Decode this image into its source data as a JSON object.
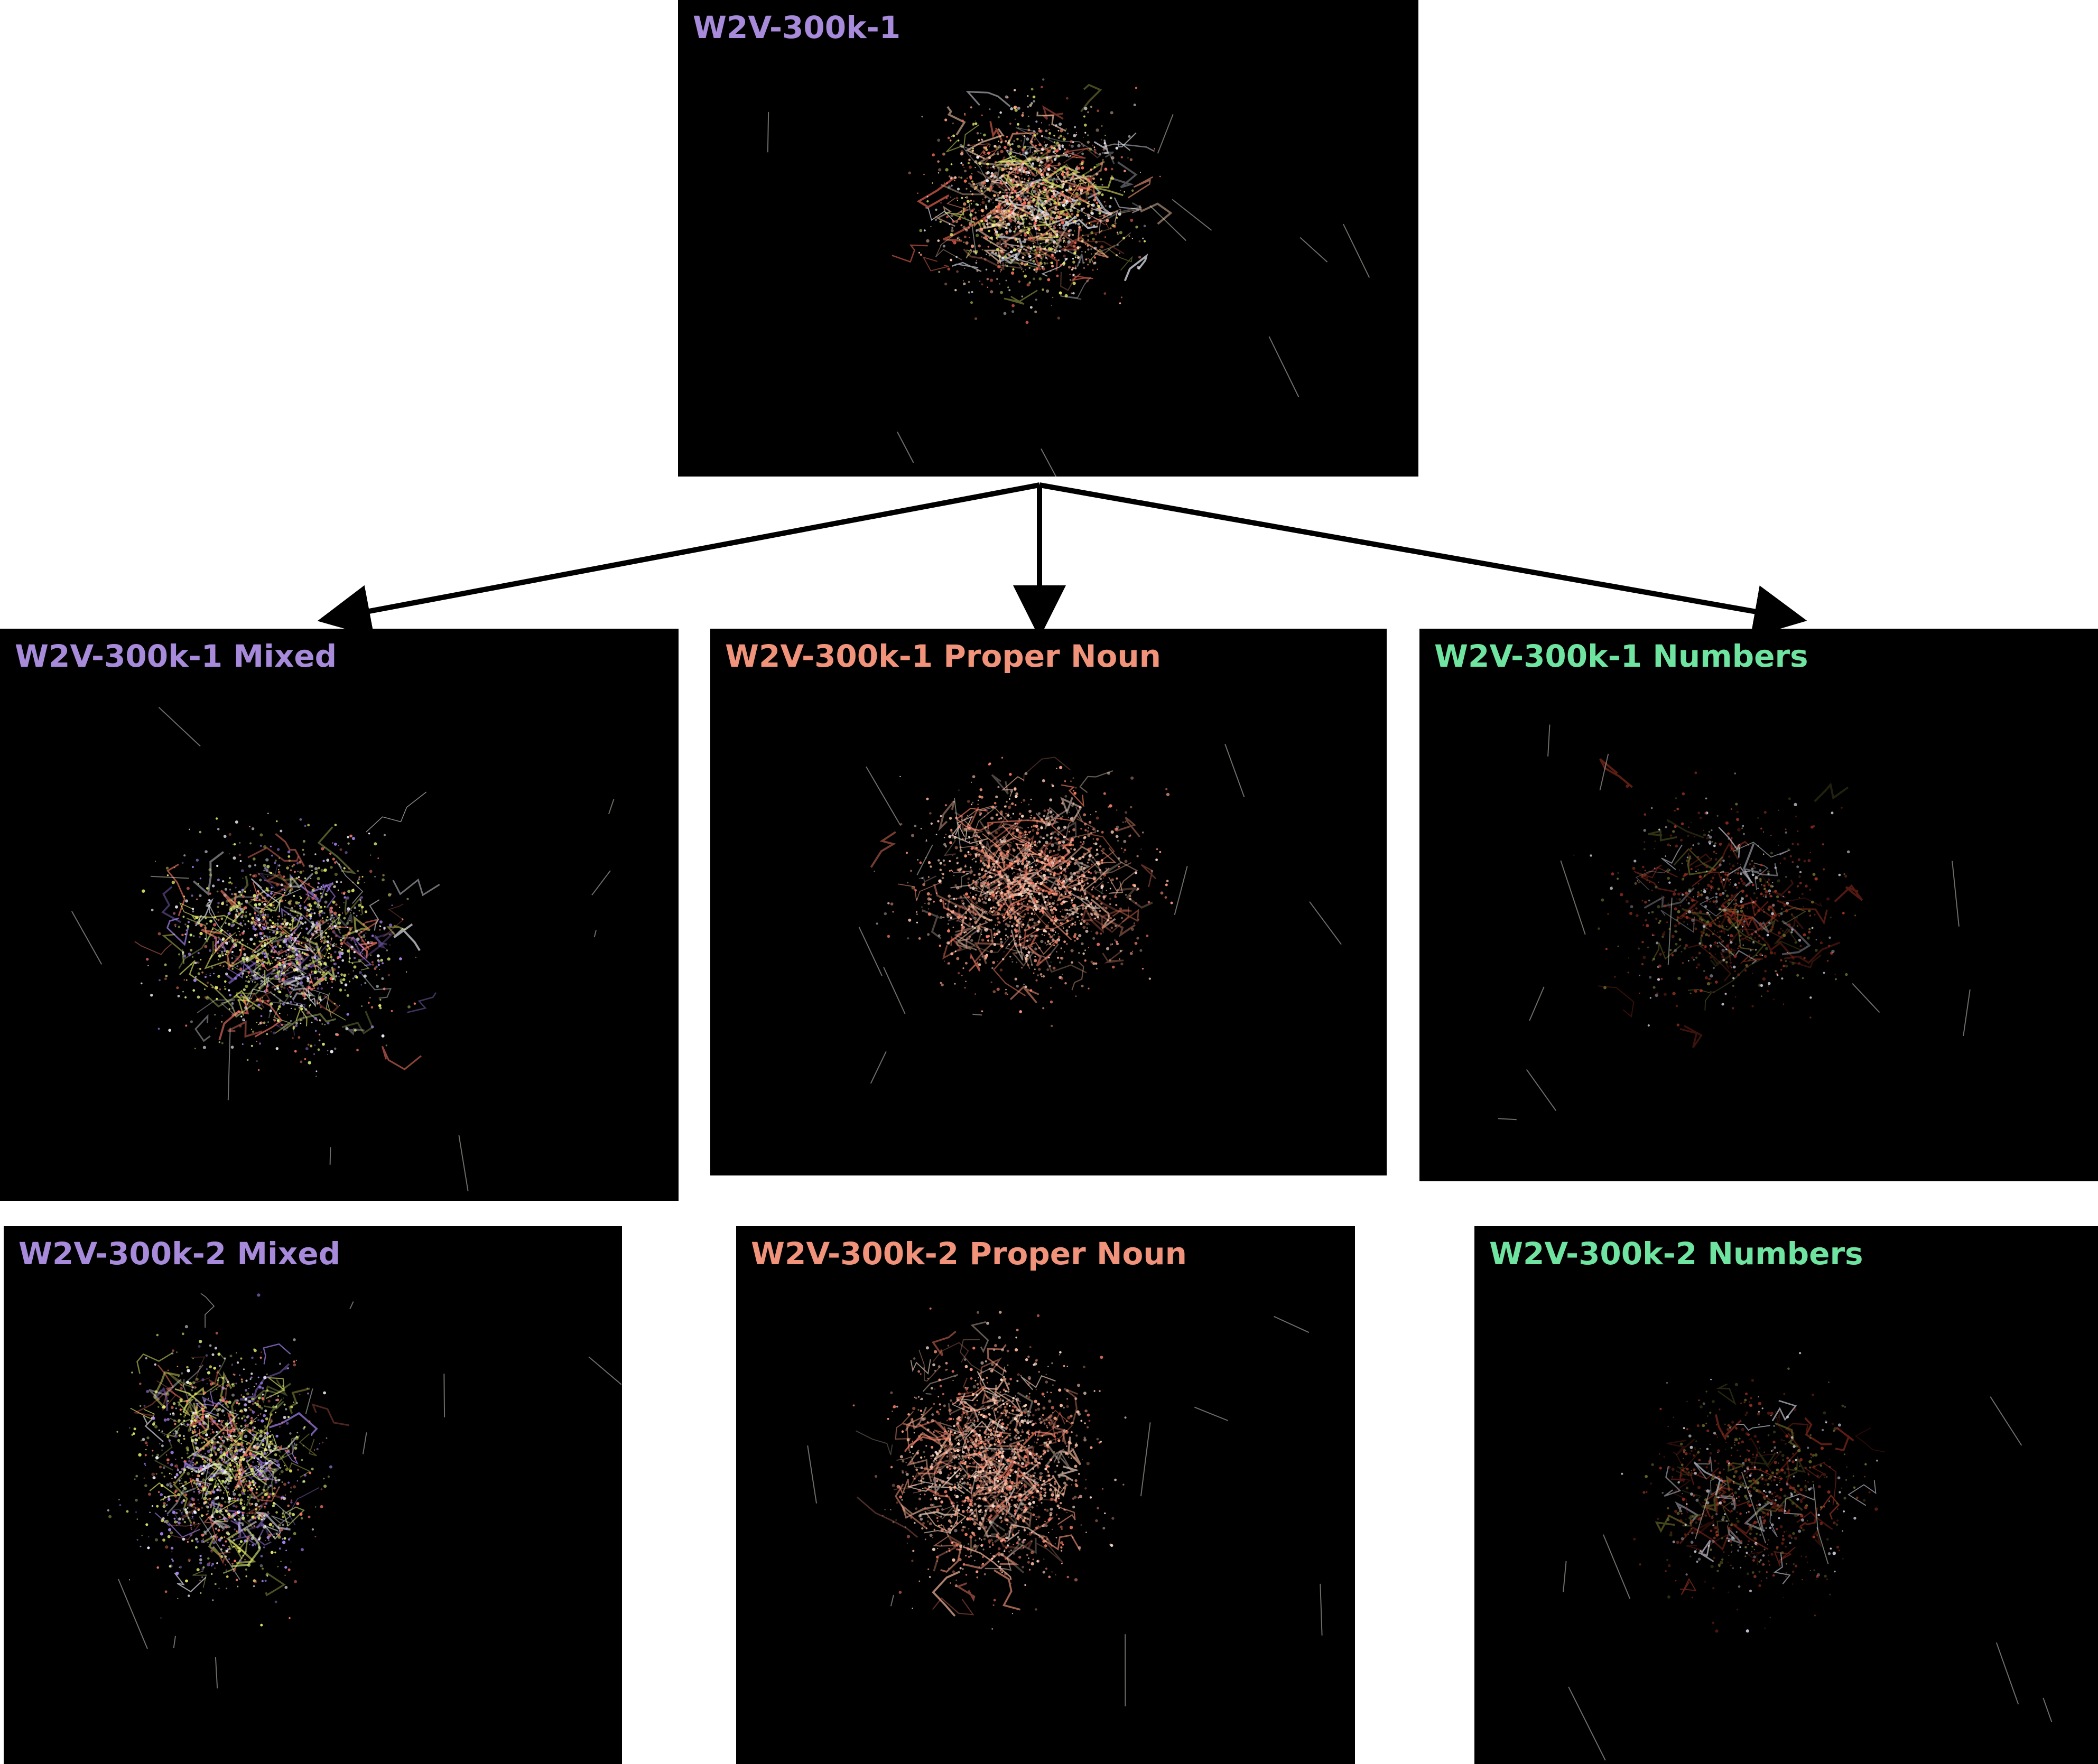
{
  "panels": {
    "top": {
      "label": "W2V-300k-1",
      "label_color": "#a78bda",
      "palette": [
        "#ff9f7f",
        "#ffd2b0",
        "#e8f06a",
        "#f2f5ff",
        "#ff6e5a"
      ],
      "density": 1.0
    },
    "mix1": {
      "label": "W2V-300k-1 Mixed",
      "label_color": "#a78bda",
      "palette": [
        "#eef36a",
        "#d7ee7a",
        "#f4f6ff",
        "#b08aff",
        "#ff7a6a"
      ],
      "density": 0.9
    },
    "prop1": {
      "label": "W2V-300k-1 Proper Noun",
      "label_color": "#f0937a",
      "palette": [
        "#ff9c80",
        "#ffc0a4",
        "#ff8066",
        "#ffe0cf"
      ],
      "density": 1.0
    },
    "num1": {
      "label": "W2V-300k-1 Numbers",
      "label_color": "#6fe3a0",
      "palette": [
        "#8a2a1c",
        "#a23422",
        "#6b6a2a",
        "#c9c9d8"
      ],
      "density": 0.45
    },
    "mix2": {
      "label": "W2V-300k-2 Mixed",
      "label_color": "#a78bda",
      "palette": [
        "#eef36a",
        "#d7ee7a",
        "#f4f6ff",
        "#b08aff",
        "#ff7a6a"
      ],
      "density": 0.9
    },
    "prop2": {
      "label": "W2V-300k-2 Proper Noun",
      "label_color": "#f0937a",
      "palette": [
        "#ff9c80",
        "#ffc0a4",
        "#ff8066",
        "#ffe0cf"
      ],
      "density": 1.0
    },
    "num2": {
      "label": "W2V-300k-2 Numbers",
      "label_color": "#6fe3a0",
      "palette": [
        "#8a2a1c",
        "#a23422",
        "#6b6a2a",
        "#c9c9d8"
      ],
      "density": 0.45
    }
  },
  "colors": {
    "background": "#000000",
    "arrow": "#000000",
    "page": "#ffffff"
  }
}
